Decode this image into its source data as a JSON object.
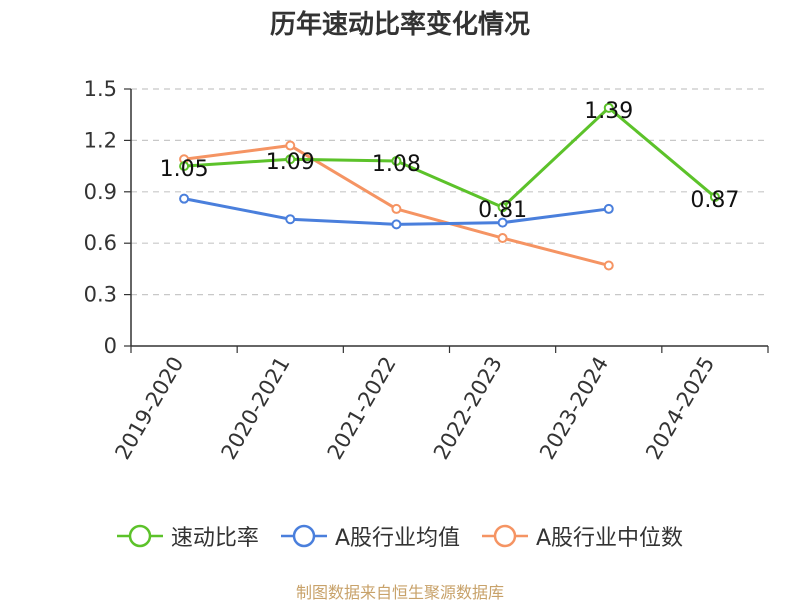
{
  "chart_data": {
    "type": "line",
    "title": "历年速动比率变化情况",
    "categories": [
      "2019-2020",
      "2020-2021",
      "2021-2022",
      "2022-2023",
      "2023-2024",
      "2024-2025"
    ],
    "ylim": [
      0,
      1.5
    ],
    "yticks": [
      0,
      0.3,
      0.6,
      0.9,
      1.2,
      1.5
    ],
    "ytick_labels": [
      "0",
      "0.3",
      "0.6",
      "0.9",
      "1.2",
      "1.5"
    ],
    "grid": "horizontal dashed",
    "legend_position": "bottom",
    "series": [
      {
        "name": "速动比率",
        "color": "#5cc22a",
        "values": [
          1.05,
          1.09,
          1.08,
          0.81,
          1.39,
          0.87
        ],
        "labels": [
          "1.05",
          "1.09",
          "1.08",
          "0.81",
          "1.39",
          "0.87"
        ]
      },
      {
        "name": "A股行业均值",
        "color": "#4a7fdc",
        "values": [
          0.86,
          0.74,
          0.71,
          0.72,
          0.8,
          null
        ]
      },
      {
        "name": "A股行业中位数",
        "color": "#f59463",
        "values": [
          1.09,
          1.17,
          0.8,
          0.63,
          0.47,
          null
        ]
      }
    ]
  },
  "source": "制图数据来自恒生聚源数据库"
}
